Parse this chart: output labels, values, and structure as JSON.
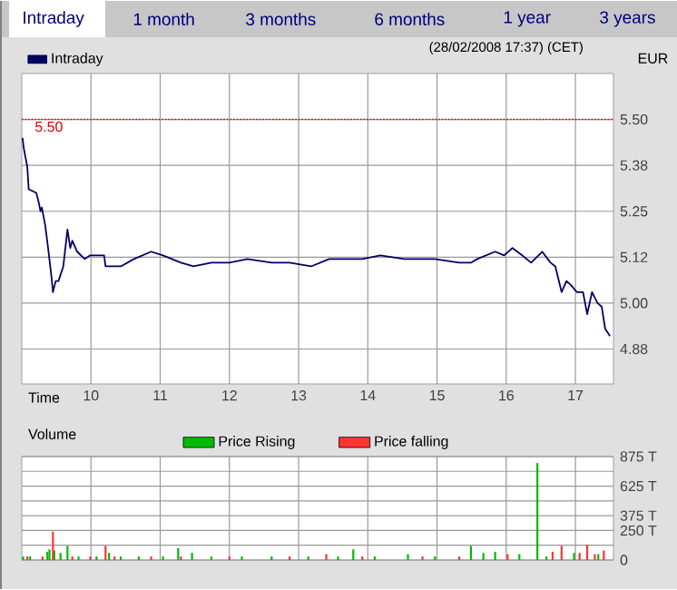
{
  "chart_data": [
    {
      "type": "line",
      "subtitle": "(28/02/2008 17:37) (CET)",
      "xlabel": "Time",
      "ylabel": "EUR",
      "annotations": [
        "Intraday",
        "1 month",
        "3 months",
        "6 months",
        "1 year",
        "3 years"
      ],
      "xlim": [
        9,
        17.55
      ],
      "xticks": [
        10,
        11,
        12,
        13,
        14,
        15,
        16,
        17
      ],
      "ylim": [
        4.78,
        5.625
      ],
      "yticks": [
        {
          "value": 4.875,
          "label": "4.88"
        },
        {
          "value": 5,
          "label": "5.00"
        },
        {
          "value": 5.125,
          "label": "5.12"
        },
        5.25,
        {
          "value": 5.375,
          "label": "5.38"
        },
        {
          "value": 5.5,
          "label": "5.50"
        }
      ],
      "grid": true,
      "legend": "top left",
      "line_style": "solid",
      "ref_lines": [
        {
          "axis": "y",
          "value": 5.5,
          "label": "5.50",
          "color": "#e00000",
          "line_style": "dotted"
        }
      ],
      "series": [
        {
          "name": "Intraday",
          "color": "#000066",
          "x": [
            9.01,
            9.03,
            9.08,
            9.1,
            9.21,
            9.25,
            9.27,
            9.29,
            9.34,
            9.38,
            9.43,
            9.45,
            9.49,
            9.53,
            9.6,
            9.66,
            9.7,
            9.73,
            9.8,
            9.91,
            9.99,
            10.19,
            10.21,
            10.43,
            10.62,
            10.87,
            11.04,
            11.3,
            11.48,
            11.74,
            12.0,
            12.26,
            12.61,
            12.87,
            13.18,
            13.44,
            13.92,
            14.18,
            14.53,
            14.97,
            15.32,
            15.49,
            15.58,
            15.84,
            15.97,
            16.09,
            16.23,
            16.36,
            16.52,
            16.64,
            16.71,
            16.8,
            16.87,
            16.93,
            17.02,
            17.11,
            17.17,
            17.24,
            17.32,
            17.38,
            17.43,
            17.5
          ],
          "values": [
            5.45,
            5.42,
            5.37,
            5.31,
            5.3,
            5.27,
            5.25,
            5.26,
            5.21,
            5.15,
            5.07,
            5.03,
            5.06,
            5.06,
            5.1,
            5.2,
            5.15,
            5.17,
            5.14,
            5.12,
            5.13,
            5.13,
            5.1,
            5.1,
            5.12,
            5.14,
            5.13,
            5.11,
            5.1,
            5.11,
            5.11,
            5.12,
            5.11,
            5.11,
            5.1,
            5.12,
            5.12,
            5.13,
            5.12,
            5.12,
            5.11,
            5.11,
            5.12,
            5.14,
            5.13,
            5.15,
            5.13,
            5.11,
            5.14,
            5.11,
            5.1,
            5.03,
            5.06,
            5.05,
            5.03,
            5.03,
            4.97,
            5.03,
            5.0,
            4.99,
            4.93,
            4.91
          ]
        }
      ]
    },
    {
      "type": "bar",
      "title": "Volume",
      "xlim": [
        9,
        17.55
      ],
      "xticks": [
        10,
        11,
        12,
        13,
        14,
        15,
        16,
        17
      ],
      "ylim": [
        0,
        875
      ],
      "yticks": [
        0,
        {
          "value": 125,
          "label": null
        },
        {
          "value": 250,
          "label": "250 T"
        },
        {
          "value": 375,
          "label": "375 T"
        },
        {
          "value": 500,
          "label": null
        },
        {
          "value": 625,
          "label": "625 T"
        },
        {
          "value": 750,
          "label": null
        },
        {
          "value": 875,
          "label": "875 T"
        }
      ],
      "tick_labels": "y",
      "grid": true,
      "legend": "top",
      "series": [
        {
          "name": "Price Rising",
          "color": "#00bb00",
          "x": [
            9.02,
            9.12,
            9.37,
            9.4,
            9.47,
            9.56,
            9.66,
            9.82,
            10.08,
            10.26,
            10.43,
            10.69,
            11.04,
            11.26,
            11.46,
            11.74,
            12.18,
            12.61,
            13.14,
            13.57,
            13.79,
            14.1,
            14.58,
            14.97,
            15.49,
            15.67,
            15.84,
            16.19,
            16.45,
            16.58,
            16.98,
            17.33
          ],
          "values": [
            30,
            30,
            70,
            90,
            80,
            60,
            120,
            30,
            30,
            60,
            30,
            30,
            30,
            100,
            60,
            30,
            30,
            30,
            30,
            30,
            90,
            30,
            50,
            30,
            120,
            60,
            70,
            50,
            820,
            30,
            60,
            50
          ]
        },
        {
          "name": "Price falling",
          "color": "#ff3333",
          "x": [
            9.08,
            9.3,
            9.45,
            9.73,
            9.99,
            10.21,
            10.34,
            10.87,
            11.3,
            12.0,
            12.87,
            13.4,
            13.92,
            14.79,
            15.32,
            16.02,
            16.67,
            16.8,
            17.06,
            17.17,
            17.28,
            17.41
          ],
          "values": [
            30,
            30,
            240,
            30,
            30,
            120,
            30,
            30,
            30,
            30,
            30,
            50,
            30,
            30,
            30,
            50,
            70,
            120,
            60,
            130,
            50,
            80
          ]
        }
      ]
    }
  ]
}
